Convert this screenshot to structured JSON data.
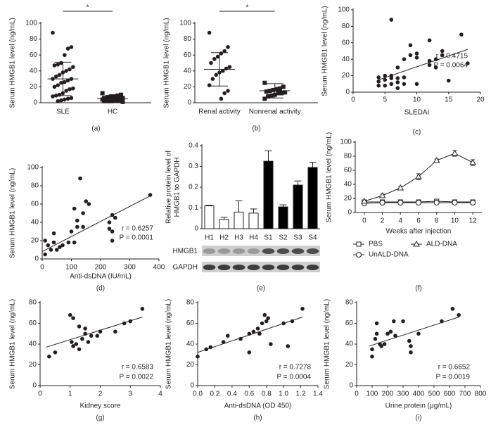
{
  "chart_data": [
    {
      "type": "strip",
      "panel": "(a)",
      "ylabel": "Serum HMGB1 level (ng/mL)",
      "ylim": [
        0,
        100
      ],
      "yticks": [
        0,
        20,
        40,
        60,
        80,
        100
      ],
      "annotation": "*",
      "color": "#231f20",
      "groups": [
        {
          "name": "SLE",
          "marker": "circle",
          "values": [
            88,
            70,
            68,
            60,
            50,
            48,
            47,
            45,
            42,
            40,
            38,
            35,
            33,
            30,
            30,
            28,
            26,
            25,
            22,
            20,
            18,
            17,
            15,
            12,
            10,
            9,
            8,
            6,
            5,
            4,
            3,
            2
          ],
          "mean": 30,
          "sd": 21
        },
        {
          "name": "HC",
          "marker": "square",
          "values": [
            12,
            10,
            9,
            8,
            8,
            7,
            6,
            6,
            5,
            5,
            5,
            4,
            4,
            4,
            3,
            3,
            3,
            2,
            2,
            2,
            1
          ],
          "mean": 5,
          "sd": 3
        }
      ]
    },
    {
      "type": "strip",
      "panel": "(b)",
      "ylabel": "Serum HMGB1 level (ng/mL)",
      "ylim": [
        0,
        100
      ],
      "yticks": [
        0,
        20,
        40,
        60,
        80,
        100
      ],
      "annotation": "*",
      "color": "#231f20",
      "groups": [
        {
          "name": "Renal activity",
          "marker": "circle",
          "values": [
            88,
            70,
            65,
            62,
            58,
            55,
            50,
            45,
            43,
            40,
            38,
            35,
            30,
            22,
            15,
            12,
            5
          ],
          "mean": 42,
          "sd": 21
        },
        {
          "name": "Nonrenal activity",
          "marker": "square",
          "values": [
            25,
            20,
            18,
            17,
            16,
            15,
            14,
            13,
            12,
            12,
            10,
            9,
            8,
            5
          ],
          "mean": 15,
          "sd": 9
        }
      ]
    },
    {
      "type": "scatter",
      "panel": "(c)",
      "ylabel": "Serum HMGB1 level (ng/mL)",
      "xlabel": "SLEDAI",
      "stats": [
        "r = 0.4715",
        "P = 0.0064"
      ],
      "color": "#231f20",
      "xlim": [
        0,
        20
      ],
      "xticks": [
        0,
        5,
        10,
        15,
        20
      ],
      "ylim": [
        0,
        100
      ],
      "yticks": [
        0,
        20,
        40,
        60,
        80,
        100
      ],
      "x": [
        4,
        4,
        4,
        5,
        5,
        5,
        6,
        6,
        6,
        6,
        7,
        7,
        7,
        7,
        8,
        8,
        8,
        9,
        9,
        10,
        10,
        10,
        12,
        12,
        12,
        13,
        13,
        14,
        14,
        15,
        17,
        18
      ],
      "y": [
        18,
        8,
        13,
        20,
        8,
        15,
        88,
        10,
        17,
        20,
        5,
        12,
        17,
        30,
        18,
        10,
        40,
        45,
        57,
        10,
        47,
        42,
        63,
        38,
        33,
        40,
        30,
        45,
        50,
        14,
        70,
        35
      ],
      "fit": {
        "x": [
          4,
          18
        ],
        "y": [
          15,
          52
        ]
      }
    },
    {
      "type": "scatter",
      "panel": "(d)",
      "ylabel": "Serum HMGB1 level (ng/mL)",
      "xlabel": "Anti-dsDNA (IU/mL)",
      "stats": [
        "r = 0.6257",
        "P = 0.0001"
      ],
      "color": "#231f20",
      "xlim": [
        0,
        400
      ],
      "xticks": [
        0,
        100,
        200,
        300,
        400
      ],
      "ylim": [
        0,
        100
      ],
      "yticks": [
        0,
        20,
        40,
        60,
        80,
        100
      ],
      "x": [
        10,
        10,
        20,
        30,
        40,
        40,
        50,
        60,
        70,
        90,
        100,
        110,
        110,
        120,
        120,
        130,
        140,
        140,
        150,
        160,
        230,
        230,
        240,
        240,
        250,
        240,
        370
      ],
      "y": [
        20,
        5,
        15,
        10,
        18,
        28,
        10,
        13,
        15,
        18,
        30,
        18,
        55,
        35,
        42,
        88,
        50,
        35,
        63,
        60,
        33,
        40,
        48,
        30,
        45,
        20,
        70
      ],
      "fit": {
        "x": [
          0,
          370
        ],
        "y": [
          8,
          69
        ]
      }
    },
    {
      "type": "bar",
      "panel": "(e)",
      "ylabel": [
        "Relative protein level of",
        "HMGB1 to GAPDH"
      ],
      "ylim": [
        0,
        0.4
      ],
      "yticks": [
        0,
        0.1,
        0.2,
        0.3,
        0.4
      ],
      "categories": [
        "H1",
        "H2",
        "H3",
        "H4",
        "S1",
        "S2",
        "S3",
        "S4"
      ],
      "values": [
        0.11,
        0.045,
        0.08,
        0.075,
        0.325,
        0.105,
        0.21,
        0.295
      ],
      "errors": [
        0.003,
        0.01,
        0.055,
        0.02,
        0.05,
        0.01,
        0.02,
        0.025
      ],
      "colors": [
        "#ffffff",
        "#ffffff",
        "#ffffff",
        "#ffffff",
        "#000000",
        "#000000",
        "#000000",
        "#000000"
      ],
      "blot_labels": [
        "HMGB1",
        "GAPDH"
      ]
    },
    {
      "type": "line",
      "panel": "(f)",
      "ylabel": "Serum HMGB1 level (ng/mL)",
      "xlabel": "Weeks after injection",
      "x": [
        0,
        2,
        4,
        6,
        8,
        10,
        12
      ],
      "xlim": [
        -1,
        13
      ],
      "xticks": [
        0,
        2,
        4,
        6,
        8,
        10,
        12
      ],
      "ylim": [
        0,
        100
      ],
      "yticks": [
        0,
        20,
        40,
        60,
        80,
        100
      ],
      "series": [
        {
          "name": "PBS",
          "marker": "square",
          "color": "#231f20",
          "values": [
            15,
            15,
            15,
            15,
            16,
            15,
            15
          ],
          "errors": [
            2,
            2,
            2,
            2,
            2,
            2,
            2
          ]
        },
        {
          "name": "UnALD-DNA",
          "marker": "circle",
          "color": "#231f20",
          "values": [
            13,
            14,
            14,
            14,
            14,
            14,
            14
          ],
          "errors": [
            2,
            2,
            2,
            2,
            2,
            2,
            2
          ]
        },
        {
          "name": "ALD-DNA",
          "marker": "triangle",
          "color": "#231f20",
          "values": [
            16,
            24,
            35,
            51,
            74,
            84,
            71
          ],
          "errors": [
            2,
            2,
            2,
            4,
            2,
            4,
            4
          ]
        }
      ]
    },
    {
      "type": "scatter",
      "panel": "(g)",
      "ylabel": "Serum HMGB1 level (ng/mL)",
      "xlabel": "Kidney score",
      "stats": [
        "r = 0.6583",
        "P = 0.0022"
      ],
      "color": "#231f20",
      "xlim": [
        0,
        4
      ],
      "xticks": [
        0,
        1,
        2,
        3,
        4
      ],
      "ylim": [
        0,
        80
      ],
      "yticks": [
        0,
        20,
        40,
        60,
        80
      ],
      "x": [
        0.3,
        0.5,
        1.0,
        1.1,
        1.05,
        1.1,
        1.2,
        1.3,
        1.3,
        1.4,
        1.5,
        1.5,
        1.6,
        1.7,
        1.9,
        2.0,
        2.5,
        2.8,
        3.0,
        3.4
      ],
      "y": [
        28,
        32,
        68,
        65,
        42,
        38,
        40,
        57,
        35,
        45,
        55,
        50,
        42,
        48,
        48,
        52,
        52,
        60,
        62,
        74
      ],
      "fit": {
        "x": [
          0.2,
          3.4
        ],
        "y": [
          37,
          66
        ]
      }
    },
    {
      "type": "scatter",
      "panel": "(h)",
      "ylabel": "Serum HMGB1 level (ng/mL)",
      "xlabel": "Anti-dsDNA (OD 450)",
      "stats": [
        "r = 0.7278",
        "P = 0.0004"
      ],
      "color": "#231f20",
      "xlim": [
        0,
        1.4
      ],
      "xticks": [
        {
          "value": 0,
          "label": "0.0"
        },
        0.2,
        0.4,
        0.6,
        0.8,
        {
          "value": 1,
          "label": "1.0"
        },
        1.2,
        1.4
      ],
      "ylim": [
        0,
        80
      ],
      "yticks": [
        0,
        20,
        40,
        60,
        80
      ],
      "x": [
        0,
        0.1,
        0.15,
        0.3,
        0.35,
        0.5,
        0.6,
        0.6,
        0.65,
        0.7,
        0.72,
        0.75,
        0.78,
        0.8,
        0.82,
        0.85,
        1.0,
        1.05,
        1.1,
        1.22
      ],
      "y": [
        28,
        35,
        37,
        42,
        48,
        45,
        50,
        32,
        52,
        55,
        50,
        60,
        68,
        62,
        65,
        40,
        60,
        38,
        62,
        74
      ],
      "fit": {
        "x": [
          0,
          1.22
        ],
        "y": [
          32,
          66
        ]
      }
    },
    {
      "type": "scatter",
      "panel": "(i)",
      "ylabel": "Serum HMGB1 level (ng/mL)",
      "xlabel": "Urine protein (μg/mL)",
      "stats": [
        "r = 0.6652",
        "P = 0.0019"
      ],
      "color": "#231f20",
      "xlim": [
        0,
        800
      ],
      "xticks": [
        0,
        100,
        200,
        300,
        400,
        500,
        600,
        700,
        800
      ],
      "ylim": [
        0,
        80
      ],
      "yticks": [
        0,
        20,
        40,
        60,
        80
      ],
      "x": [
        100,
        100,
        120,
        130,
        130,
        150,
        160,
        180,
        200,
        220,
        240,
        250,
        300,
        340,
        350,
        350,
        400,
        550,
        620,
        660
      ],
      "y": [
        28,
        35,
        45,
        60,
        50,
        40,
        38,
        40,
        50,
        52,
        62,
        48,
        62,
        43,
        32,
        38,
        50,
        62,
        74,
        68
      ],
      "fit": {
        "x": [
          80,
          660
        ],
        "y": [
          38,
          66
        ]
      }
    }
  ]
}
